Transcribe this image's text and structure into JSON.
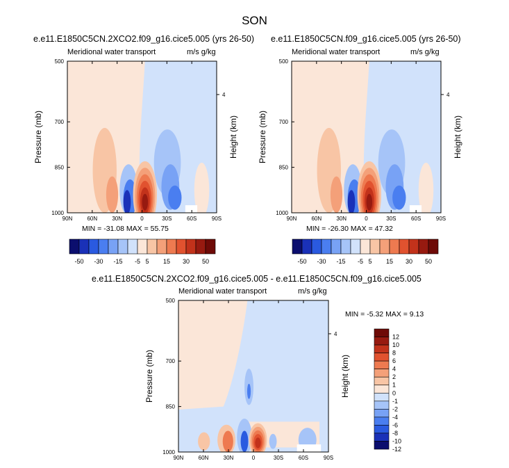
{
  "page": {
    "title": "SON"
  },
  "panels": [
    {
      "title": "e.e11.E1850C5CN.2XCO2.f09_g16.cice5.005 (yrs 26-50)",
      "left_label": "Meridional water transport",
      "right_label": "m/s g/kg",
      "stats": "MIN = -31.08   MAX =  55.75"
    },
    {
      "title": "e.e11.E1850C5CN.f09_g16.cice5.005 (yrs 26-50)",
      "left_label": "Meridional water transport",
      "right_label": "m/s g/kg",
      "stats": "MIN = -26.30   MAX =  47.32"
    },
    {
      "title": "e.e11.E1850C5CN.2XCO2.f09_g16.cice5.005 - e.e11.E1850C5CN.f09_g16.cice5.005",
      "left_label": "Meridional water transport",
      "right_label": "m/s g/kg",
      "stats": "MIN = -5.32   MAX =  9.13"
    }
  ],
  "chart_data": [
    {
      "type": "heatmap",
      "title": "e.e11.E1850C5CN.2XCO2.f09_g16.cice5.005 (yrs 26-50)",
      "xlabel": "",
      "ylabel": "Pressure (mb)",
      "y2label": "Height (km)",
      "xticks": [
        "90N",
        "60N",
        "30N",
        "0",
        "30S",
        "60S",
        "90S"
      ],
      "xlim": [
        90,
        -90
      ],
      "yticks": [
        500,
        700,
        850,
        1000
      ],
      "ylim": [
        1000,
        500
      ],
      "y2ticks": [
        "4"
      ],
      "contour_levels": [
        -50,
        -30,
        -15,
        -5,
        5,
        15,
        30,
        50
      ],
      "min": -31.08,
      "max": 55.75
    },
    {
      "type": "heatmap",
      "title": "e.e11.E1850C5CN.f09_g16.cice5.005 (yrs 26-50)",
      "xlabel": "",
      "ylabel": "Pressure (mb)",
      "y2label": "Height (km)",
      "xticks": [
        "90N",
        "60N",
        "30N",
        "0",
        "30S",
        "60S",
        "90S"
      ],
      "xlim": [
        90,
        -90
      ],
      "yticks": [
        500,
        700,
        850,
        1000
      ],
      "ylim": [
        1000,
        500
      ],
      "y2ticks": [
        "4"
      ],
      "contour_levels": [
        -50,
        -30,
        -15,
        -5,
        5,
        15,
        30,
        50
      ],
      "min": -26.3,
      "max": 47.32
    },
    {
      "type": "heatmap",
      "title": "e.e11.E1850C5CN.2XCO2.f09_g16.cice5.005 - e.e11.E1850C5CN.f09_g16.cice5.005",
      "xlabel": "",
      "ylabel": "Pressure (mb)",
      "y2label": "Height (km)",
      "xticks": [
        "90N",
        "60N",
        "30N",
        "0",
        "30S",
        "60S",
        "90S"
      ],
      "xlim": [
        90,
        -90
      ],
      "yticks": [
        500,
        700,
        850,
        1000
      ],
      "ylim": [
        1000,
        500
      ],
      "y2ticks": [
        "4"
      ],
      "contour_levels": [
        -12,
        -10,
        -8,
        -6,
        -4,
        -2,
        -1,
        0,
        1,
        2,
        4,
        6,
        8,
        10,
        12
      ],
      "min": -5.32,
      "max": 9.13
    }
  ],
  "colorbars": {
    "top": {
      "labels": [
        "-50",
        "-30",
        "-15",
        "-5",
        "5",
        "15",
        "30",
        "50"
      ],
      "colors": [
        "#0b0e6e",
        "#1a31b8",
        "#2a5ae0",
        "#4a7ef0",
        "#78a2f5",
        "#a6c4f8",
        "#d1e2fb",
        "#fbe6d8",
        "#f8c5a5",
        "#f4a079",
        "#ee7a50",
        "#e1522f",
        "#c2321b",
        "#971a10",
        "#6e0a07"
      ]
    },
    "bottom": {
      "labels": [
        "12",
        "10",
        "8",
        "6",
        "4",
        "2",
        "1",
        "0",
        "-1",
        "-2",
        "-4",
        "-6",
        "-8",
        "-10",
        "-12"
      ],
      "colors": [
        "#6e0a07",
        "#971a10",
        "#c2321b",
        "#e1522f",
        "#ee7a50",
        "#f4a079",
        "#f8c5a5",
        "#fbe6d8",
        "#d1e2fb",
        "#a6c4f8",
        "#78a2f5",
        "#4a7ef0",
        "#2a5ae0",
        "#1a31b8",
        "#0b0e6e"
      ]
    }
  }
}
